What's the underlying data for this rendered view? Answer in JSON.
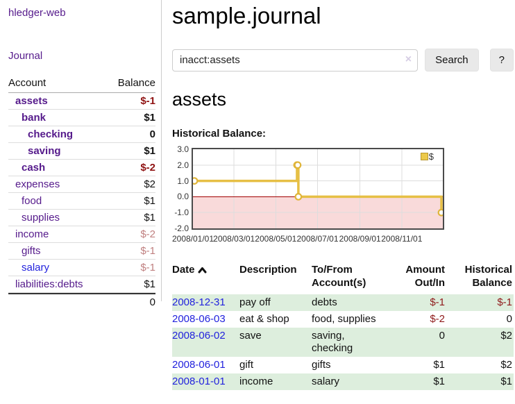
{
  "app": {
    "brand": "hledger-web",
    "nav_journal": "Journal"
  },
  "sidebar": {
    "table": {
      "col_account": "Account",
      "col_balance": "Balance",
      "accounts": [
        {
          "name": "assets",
          "level": 0,
          "bold": true,
          "balance": "$-1",
          "neg": "strong"
        },
        {
          "name": "bank",
          "level": 1,
          "bold": true,
          "balance": "$1"
        },
        {
          "name": "checking",
          "level": 2,
          "bold": true,
          "balance": "0"
        },
        {
          "name": "saving",
          "level": 2,
          "bold": true,
          "balance": "$1"
        },
        {
          "name": "cash",
          "level": 1,
          "bold": true,
          "balance": "$-2",
          "neg": "strong"
        },
        {
          "name": "expenses",
          "level": 0,
          "bold": false,
          "balance": "$2"
        },
        {
          "name": "food",
          "level": 1,
          "bold": false,
          "balance": "$1"
        },
        {
          "name": "supplies",
          "level": 1,
          "bold": false,
          "balance": "$1"
        },
        {
          "name": "income",
          "level": 0,
          "bold": false,
          "balance": "$-2",
          "neg": "soft"
        },
        {
          "name": "gifts",
          "level": 1,
          "bold": false,
          "balance": "$-1",
          "neg": "soft"
        },
        {
          "name": "salary",
          "level": 1,
          "bold": false,
          "balance": "$-1",
          "neg": "soft",
          "link": "blue"
        },
        {
          "name": "liabilities:debts",
          "level": 0,
          "bold": false,
          "balance": "$1"
        }
      ],
      "total": "0"
    }
  },
  "header": {
    "title": "sample.journal"
  },
  "search": {
    "value": "inacct:assets",
    "clear_icon": "×",
    "button": "Search",
    "help_button": "?"
  },
  "account_page": {
    "heading": "assets",
    "chart_label": "Historical Balance:"
  },
  "chart_data": {
    "type": "line",
    "step": true,
    "title": "Historical Balance:",
    "legend": "$",
    "legend_position": "top-right",
    "grid": true,
    "xlim": [
      "2008-01-01",
      "2008-12-31"
    ],
    "ylim": [
      -2,
      3
    ],
    "x_ticks": [
      "2008/01/01",
      "2008/03/01",
      "2008/05/01",
      "2008/07/01",
      "2008/09/01",
      "2008/11/01"
    ],
    "y_ticks": [
      3.0,
      2.0,
      1.0,
      0.0,
      -1.0,
      -2.0
    ],
    "series": [
      {
        "name": "$",
        "points": [
          [
            "2008-01-01",
            1
          ],
          [
            "2008-06-01",
            2
          ],
          [
            "2008-06-02",
            2
          ],
          [
            "2008-06-03",
            0
          ],
          [
            "2008-12-31",
            -1
          ]
        ]
      }
    ]
  },
  "register": {
    "columns": [
      "Date",
      "Description",
      "To/From Account(s)",
      "Amount Out/In",
      "Historical Balance"
    ],
    "sort": "ascending",
    "rows": [
      {
        "date": "2008-12-31",
        "description": "pay off",
        "accounts": "debts",
        "amount": "$-1",
        "balance": "$-1"
      },
      {
        "date": "2008-06-03",
        "description": "eat & shop",
        "accounts": "food, supplies",
        "amount": "$-2",
        "balance": "0"
      },
      {
        "date": "2008-06-02",
        "description": "save",
        "accounts": "saving, checking",
        "amount": "0",
        "balance": "$2"
      },
      {
        "date": "2008-06-01",
        "description": "gift",
        "accounts": "gifts",
        "amount": "$1",
        "balance": "$2"
      },
      {
        "date": "2008-01-01",
        "description": "income",
        "accounts": "salary",
        "amount": "$1",
        "balance": "$1"
      }
    ]
  },
  "colors": {
    "accent_purple": "#551a8b",
    "link_blue": "#2222dd",
    "negative_dark_red": "#8f1212",
    "negative_soft_red": "#c08080",
    "stripe_green": "#ddeedd",
    "chart_line_gold": "#e6bf45",
    "chart_marker_ring": "#e0b53a",
    "chart_negative_pink": "#f9dada",
    "chart_zero_line": "#a00000",
    "chart_grid": "#dddddd",
    "chart_border": "#4a4a4a"
  }
}
